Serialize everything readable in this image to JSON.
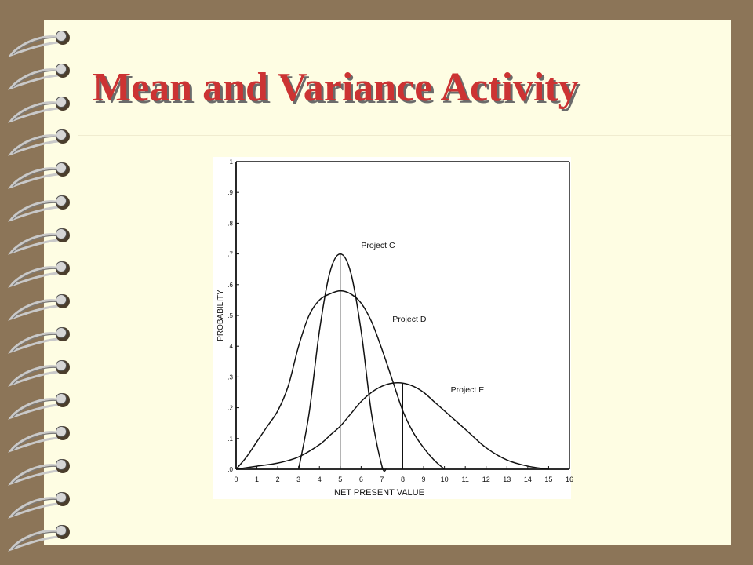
{
  "slide": {
    "title": "Mean and Variance Activity",
    "background_color": "#fefde3",
    "frame_color": "#8c7558",
    "title_color": "#cc3333"
  },
  "chart_data": {
    "type": "line",
    "xlabel": "NET PRESENT VALUE",
    "ylabel": "PROBABILITY",
    "xlim": [
      0,
      16
    ],
    "ylim": [
      0,
      1
    ],
    "x_ticks": [
      0,
      1,
      2,
      3,
      4,
      5,
      6,
      7,
      8,
      9,
      10,
      11,
      12,
      13,
      14,
      15,
      16
    ],
    "y_ticks": [
      0,
      0.1,
      0.2,
      0.3,
      0.4,
      0.5,
      0.6,
      0.7,
      0.8,
      0.9,
      1
    ],
    "y_tick_labels": [
      ".0",
      ".1",
      ".2",
      ".3",
      ".4",
      ".5",
      ".6",
      ".7",
      ".8",
      ".9",
      "1"
    ],
    "grid": false,
    "series": [
      {
        "name": "Project C",
        "x": [
          3,
          3.5,
          4,
          4.5,
          5,
          5.5,
          6,
          6.5,
          7,
          7.2
        ],
        "y": [
          0,
          0.18,
          0.45,
          0.64,
          0.7,
          0.64,
          0.45,
          0.18,
          0.01,
          0
        ]
      },
      {
        "name": "Project D",
        "x": [
          0,
          0.5,
          1,
          1.5,
          2,
          2.5,
          3,
          3.5,
          4,
          4.5,
          5,
          5.5,
          6,
          6.5,
          7,
          7.5,
          8,
          8.5,
          9,
          9.5,
          10
        ],
        "y": [
          0,
          0.04,
          0.09,
          0.14,
          0.19,
          0.27,
          0.4,
          0.5,
          0.55,
          0.57,
          0.58,
          0.57,
          0.54,
          0.48,
          0.39,
          0.29,
          0.19,
          0.12,
          0.07,
          0.03,
          0
        ]
      },
      {
        "name": "Project E",
        "x": [
          0,
          1,
          2,
          3,
          4,
          4.5,
          5,
          5.5,
          6,
          6.5,
          7,
          7.5,
          8,
          8.5,
          9,
          9.5,
          10,
          11,
          12,
          13,
          14,
          15
        ],
        "y": [
          0,
          0.01,
          0.02,
          0.04,
          0.08,
          0.11,
          0.14,
          0.18,
          0.22,
          0.25,
          0.27,
          0.28,
          0.28,
          0.27,
          0.25,
          0.22,
          0.19,
          0.13,
          0.07,
          0.03,
          0.01,
          0
        ]
      }
    ],
    "mean_lines": [
      {
        "x": 5,
        "y": 0.7
      },
      {
        "x": 8,
        "y": 0.28
      }
    ],
    "annotations": [
      {
        "text": "Project C",
        "x": 6.0,
        "y": 0.72
      },
      {
        "text": "Project D",
        "x": 7.5,
        "y": 0.48
      },
      {
        "text": "Project E",
        "x": 10.3,
        "y": 0.25
      }
    ]
  }
}
